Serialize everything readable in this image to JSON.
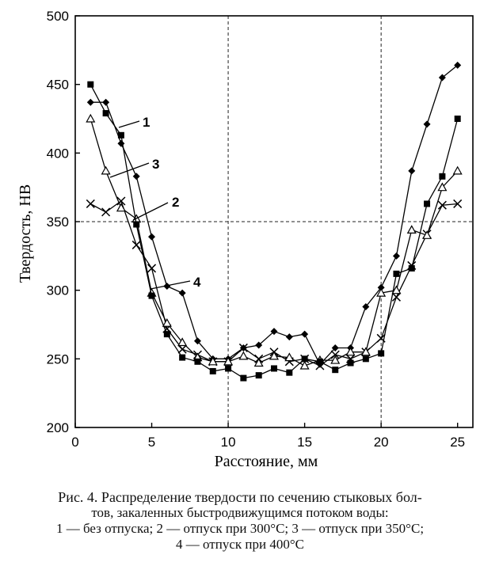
{
  "chart_data": {
    "type": "line",
    "xlabel": "Расстояние, мм",
    "ylabel": "Твердость, НВ",
    "xlim": [
      0,
      26
    ],
    "ylim": [
      200,
      500
    ],
    "xticks": [
      0,
      5,
      10,
      15,
      20,
      25
    ],
    "yticks": [
      200,
      250,
      300,
      350,
      400,
      450,
      500
    ],
    "grid": "dashed at 10 and 20 (x), 350 (y)",
    "series": [
      {
        "name": "1",
        "marker": "diamond",
        "x": [
          1,
          2,
          3,
          4,
          5,
          6,
          7,
          8,
          9,
          10,
          11,
          12,
          13,
          14,
          15,
          16,
          17,
          18,
          19,
          20,
          21,
          22,
          23,
          24,
          25
        ],
        "y": [
          437,
          437,
          407,
          383,
          339,
          303,
          298,
          263,
          250,
          250,
          258,
          260,
          270,
          266,
          268,
          246,
          258,
          258,
          288,
          302,
          325,
          387,
          421,
          455,
          464
        ]
      },
      {
        "name": "2",
        "marker": "x",
        "x": [
          1,
          2,
          3,
          4,
          5,
          6,
          7,
          8,
          9,
          10,
          11,
          12,
          13,
          14,
          15,
          16,
          17,
          18,
          19,
          20,
          21,
          22,
          23,
          24,
          25
        ],
        "y": [
          363,
          357,
          365,
          333,
          316,
          272,
          257,
          253,
          248,
          248,
          258,
          250,
          255,
          248,
          250,
          245,
          253,
          250,
          255,
          265,
          295,
          318,
          341,
          362,
          363
        ]
      },
      {
        "name": "3",
        "marker": "triangle",
        "x": [
          1,
          2,
          3,
          4,
          5,
          6,
          7,
          8,
          9,
          10,
          11,
          12,
          13,
          14,
          15,
          16,
          17,
          18,
          19,
          20,
          21,
          22,
          23,
          24,
          25
        ],
        "y": [
          425,
          387,
          360,
          352,
          298,
          276,
          262,
          251,
          248,
          248,
          252,
          247,
          252,
          251,
          245,
          249,
          249,
          255,
          255,
          298,
          300,
          344,
          340,
          375,
          387
        ]
      },
      {
        "name": "4",
        "marker": "square",
        "x": [
          1,
          2,
          3,
          4,
          5,
          6,
          7,
          8,
          9,
          10,
          11,
          12,
          13,
          14,
          15,
          16,
          17,
          18,
          19,
          20,
          21,
          22,
          23,
          24,
          25
        ],
        "y": [
          450,
          429,
          413,
          348,
          296,
          268,
          251,
          248,
          241,
          243,
          236,
          238,
          243,
          240,
          250,
          248,
          242,
          247,
          250,
          254,
          312,
          316,
          363,
          383,
          425
        ]
      }
    ]
  },
  "caption": {
    "line1": "Рис. 4. Распределение твердости по сечению стыковых бол-",
    "line2": "тов, закаленных быстродвижущимся потоком воды:",
    "line3": "1 — без отпуска; 2 — отпуск при 300°С; 3 — отпуск при 350°С;",
    "line4": "4 — отпуск при 400°С"
  }
}
